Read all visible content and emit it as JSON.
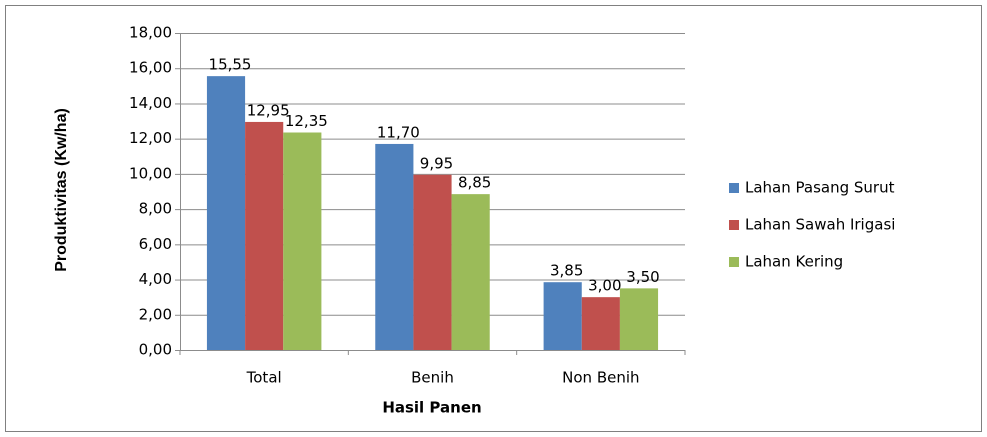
{
  "chart_data": {
    "type": "bar",
    "categories": [
      "Total",
      "Benih",
      "Non Benih"
    ],
    "series": [
      {
        "name": "Lahan Pasang Surut",
        "color": "#4f81bd",
        "values": [
          15.55,
          11.7,
          3.85
        ],
        "value_labels": [
          "15,55",
          "11,70",
          "3,85"
        ]
      },
      {
        "name": "Lahan Sawah Irigasi",
        "color": "#c0504d",
        "values": [
          12.95,
          9.95,
          3.0
        ],
        "value_labels": [
          "12,95",
          "9,95",
          "3,00"
        ]
      },
      {
        "name": "Lahan Kering",
        "color": "#9bbb59",
        "values": [
          12.35,
          8.85,
          3.5
        ],
        "value_labels": [
          "12,35",
          "8,85",
          "3,50"
        ]
      }
    ],
    "ylabel": "Produktivitas (Kw/ha)",
    "xlabel": "Hasil Panen",
    "ylim": [
      0,
      18
    ],
    "yticks": [
      {
        "value": 0,
        "label": "0,00"
      },
      {
        "value": 2,
        "label": "2,00"
      },
      {
        "value": 4,
        "label": "4,00"
      },
      {
        "value": 6,
        "label": "6,00"
      },
      {
        "value": 8,
        "label": "8,00"
      },
      {
        "value": 10,
        "label": "10,00"
      },
      {
        "value": 12,
        "label": "12,00"
      },
      {
        "value": 14,
        "label": "14,00"
      },
      {
        "value": 16,
        "label": "16,00"
      },
      {
        "value": 18,
        "label": "18,00"
      }
    ],
    "grid": true,
    "legend": "right"
  }
}
